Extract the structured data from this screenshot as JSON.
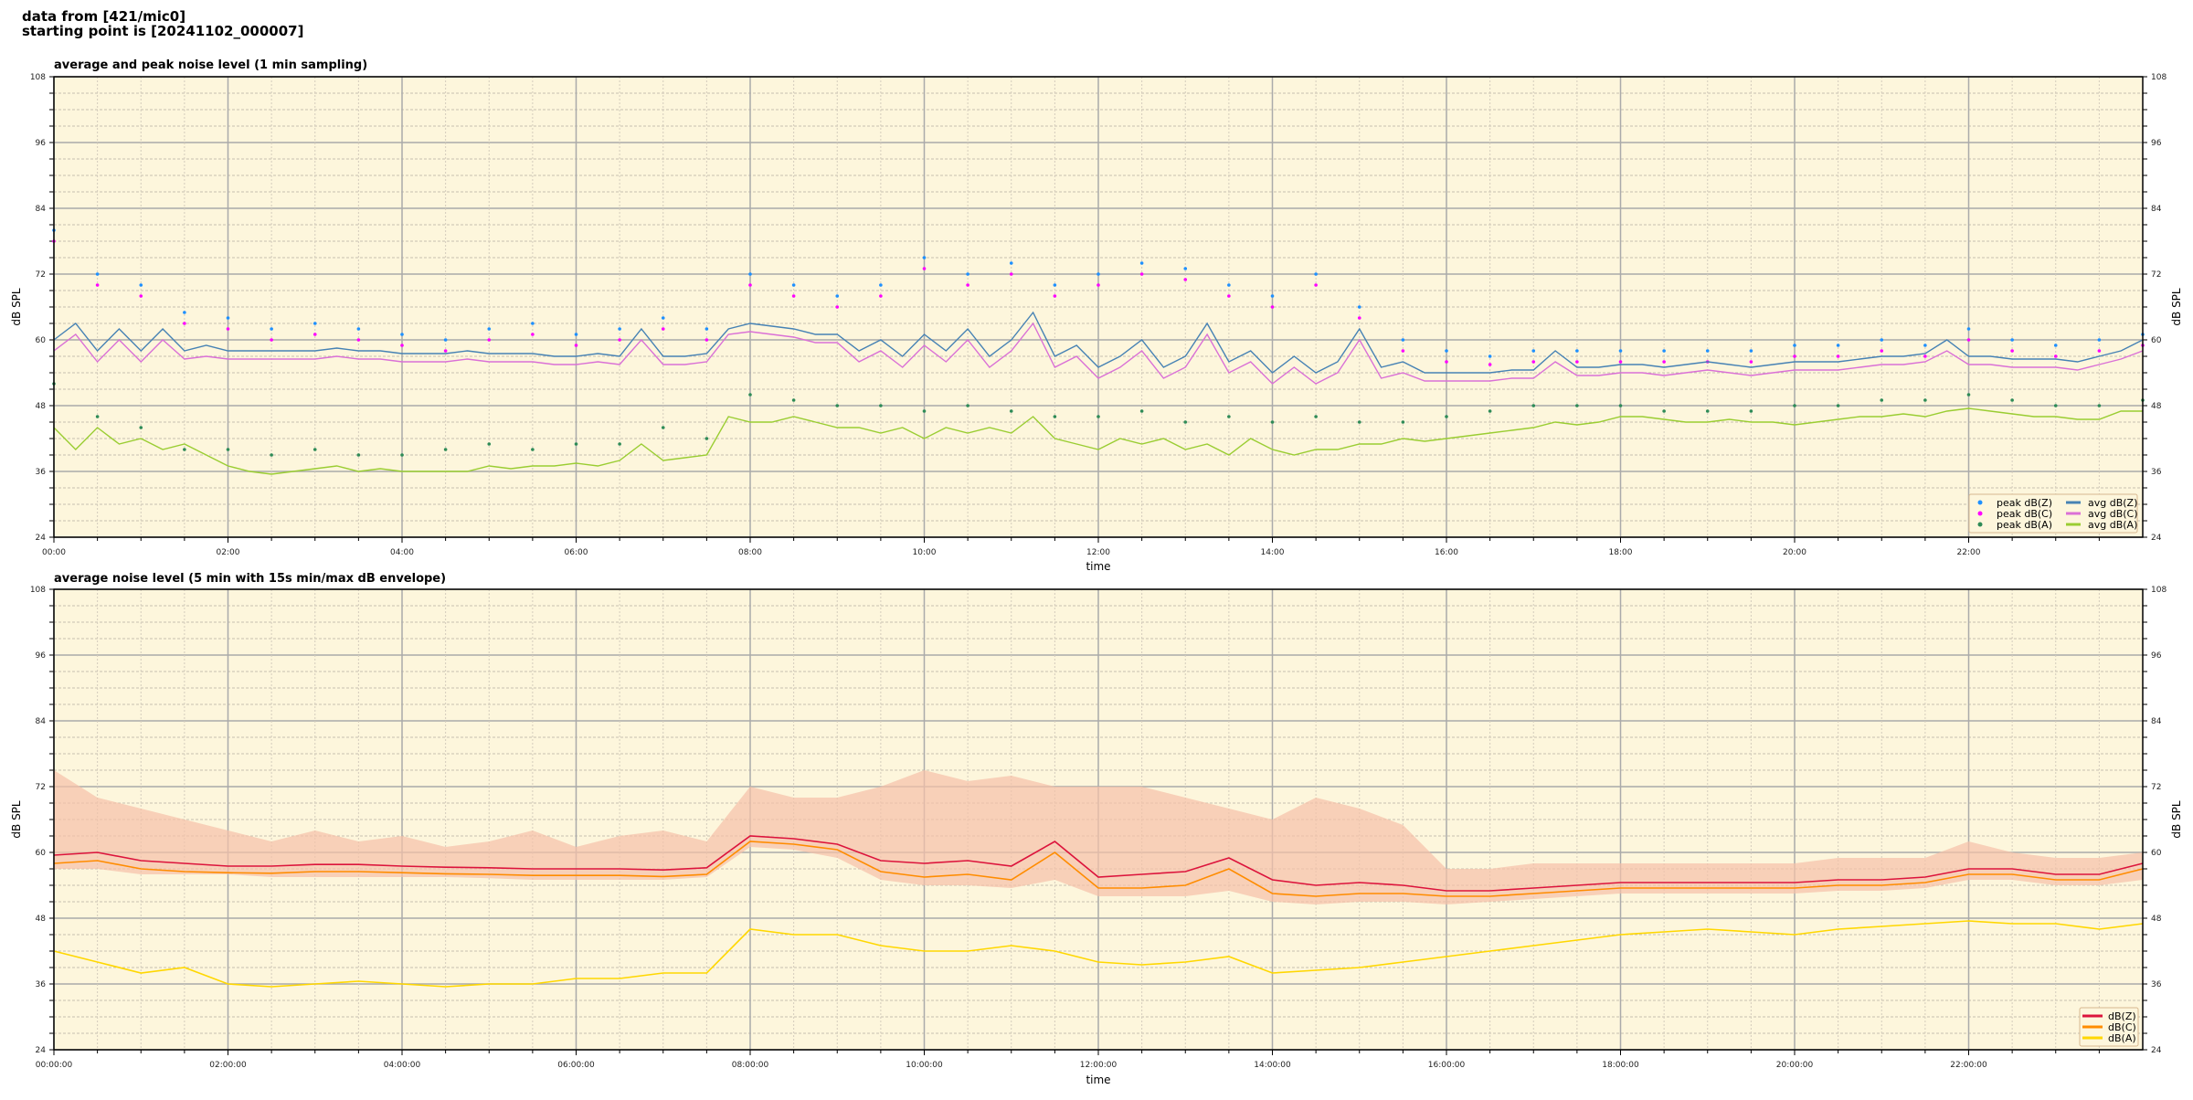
{
  "figure": {
    "suptitle_line1": "data from [421/mic0]",
    "suptitle_line2": "starting point is [20241102_000007]"
  },
  "colors": {
    "plot_background": "#fdf6dc",
    "peak_z": "#1e90ff",
    "peak_c": "#ff00ff",
    "peak_a": "#2e8b57",
    "avg_z": "#4682b4",
    "avg_c": "#da70d6",
    "avg_a": "#9acd32",
    "env_z": "#dc143c",
    "env_c": "#ff8c00",
    "env_a": "#ffd700",
    "envelope_fill": "#f5c0a8"
  },
  "chart_data": [
    {
      "type": "line",
      "title": "average and peak noise level (1 min sampling)",
      "xlabel": "time",
      "ylabel": "dB SPL",
      "ylim": [
        24,
        108
      ],
      "yticks": [
        "108",
        "96",
        "84",
        "72",
        "60",
        "48",
        "36",
        "24"
      ],
      "xlim_hours": [
        0,
        24
      ],
      "xticks": [
        "00:00",
        "02:00",
        "04:00",
        "06:00",
        "08:00",
        "10:00",
        "12:00",
        "14:00",
        "16:00",
        "18:00",
        "20:00",
        "22:00"
      ],
      "grid": true,
      "legend_position": "bottom-right",
      "x_step_minutes_avg": 15,
      "x_step_minutes_peak": 30,
      "series": [
        {
          "name": "peak dB(Z)",
          "kind": "scatter",
          "values": [
            80,
            72,
            70,
            65,
            64,
            62,
            63,
            62,
            61,
            60,
            62,
            63,
            61,
            62,
            64,
            62,
            72,
            70,
            68,
            70,
            75,
            72,
            74,
            70,
            72,
            74,
            73,
            70,
            68,
            72,
            66,
            60,
            58,
            57,
            58,
            58,
            58,
            58,
            58,
            58,
            59,
            59,
            60,
            59,
            62,
            60,
            59,
            60,
            61
          ]
        },
        {
          "name": "peak dB(C)",
          "kind": "scatter",
          "values": [
            78,
            70,
            68,
            63,
            62,
            60,
            61,
            60,
            59,
            58,
            60,
            61,
            59,
            60,
            62,
            60,
            70,
            68,
            66,
            68,
            73,
            70,
            72,
            68,
            70,
            72,
            71,
            68,
            66,
            70,
            64,
            58,
            56,
            55.5,
            56,
            56,
            56,
            56,
            56,
            56,
            57,
            57,
            58,
            57,
            60,
            58,
            57,
            58,
            59
          ]
        },
        {
          "name": "peak dB(A)",
          "kind": "scatter",
          "values": [
            52,
            46,
            44,
            40,
            40,
            39,
            40,
            39,
            39,
            40,
            41,
            40,
            41,
            41,
            44,
            42,
            50,
            49,
            48,
            48,
            47,
            48,
            47,
            46,
            46,
            47,
            45,
            46,
            45,
            46,
            45,
            45,
            46,
            47,
            48,
            48,
            48,
            47,
            47,
            47,
            48,
            48,
            49,
            49,
            50,
            49,
            48,
            48,
            49
          ]
        },
        {
          "name": "avg dB(Z)",
          "kind": "line",
          "values": [
            60,
            63,
            58,
            62,
            58,
            62,
            58,
            59,
            58,
            58,
            58,
            58,
            58,
            58.5,
            58,
            58,
            57.5,
            57.5,
            57.5,
            58,
            57.5,
            57.5,
            57.5,
            57,
            57,
            57.5,
            57,
            62,
            57,
            57,
            57.5,
            62,
            63,
            62.5,
            62,
            61,
            61,
            58,
            60,
            57,
            61,
            58,
            62,
            57,
            60,
            65,
            57,
            59,
            55,
            57,
            60,
            55,
            57,
            63,
            56,
            58,
            54,
            57,
            54,
            56,
            62,
            55,
            56,
            54,
            54,
            54,
            54,
            54.5,
            54.5,
            58,
            55,
            55,
            55.5,
            55.5,
            55,
            55.5,
            56,
            55.5,
            55,
            55.5,
            56,
            56,
            56,
            56.5,
            57,
            57,
            57.5,
            60,
            57,
            57,
            56.5,
            56.5,
            56.5,
            56,
            57,
            58,
            60
          ]
        },
        {
          "name": "avg dB(C)",
          "kind": "line",
          "values": [
            58,
            61,
            56,
            60,
            56,
            60,
            56.5,
            57,
            56.5,
            56.5,
            56.5,
            56.5,
            56.5,
            57,
            56.5,
            56.5,
            56,
            56,
            56,
            56.5,
            56,
            56,
            56,
            55.5,
            55.5,
            56,
            55.5,
            60,
            55.5,
            55.5,
            56,
            61,
            61.5,
            61,
            60.5,
            59.5,
            59.5,
            56,
            58,
            55,
            59,
            56,
            60,
            55,
            58,
            63,
            55,
            57,
            53,
            55,
            58,
            53,
            55,
            61,
            54,
            56,
            52,
            55,
            52,
            54,
            60,
            53,
            54,
            52.5,
            52.5,
            52.5,
            52.5,
            53,
            53,
            56,
            53.5,
            53.5,
            54,
            54,
            53.5,
            54,
            54.5,
            54,
            53.5,
            54,
            54.5,
            54.5,
            54.5,
            55,
            55.5,
            55.5,
            56,
            58,
            55.5,
            55.5,
            55,
            55,
            55,
            54.5,
            55.5,
            56.5,
            58
          ]
        },
        {
          "name": "avg dB(A)",
          "kind": "line",
          "values": [
            44,
            40,
            44,
            41,
            42,
            40,
            41,
            39,
            37,
            36,
            35.5,
            36,
            36.5,
            37,
            36,
            36.5,
            36,
            36,
            36,
            36,
            37,
            36.5,
            37,
            37,
            37.5,
            37,
            38,
            41,
            38,
            38.5,
            39,
            46,
            45,
            45,
            46,
            45,
            44,
            44,
            43,
            44,
            42,
            44,
            43,
            44,
            43,
            46,
            42,
            41,
            40,
            42,
            41,
            42,
            40,
            41,
            39,
            42,
            40,
            39,
            40,
            40,
            41,
            41,
            42,
            41.5,
            42,
            42.5,
            43,
            43.5,
            44,
            45,
            44.5,
            45,
            46,
            46,
            45.5,
            45,
            45,
            45.5,
            45,
            45,
            44.5,
            45,
            45.5,
            46,
            46,
            46.5,
            46,
            47,
            47.5,
            47,
            46.5,
            46,
            46,
            45.5,
            45.5,
            47,
            47
          ]
        }
      ]
    },
    {
      "type": "line",
      "title": "average noise level (5 min with 15s min/max dB envelope)",
      "xlabel": "time",
      "ylabel": "dB SPL",
      "ylim": [
        24,
        108
      ],
      "yticks": [
        "108",
        "96",
        "84",
        "72",
        "60",
        "48",
        "36",
        "24"
      ],
      "xlim_hours": [
        0,
        24
      ],
      "xticks": [
        "00:00:00",
        "02:00:00",
        "04:00:00",
        "06:00:00",
        "08:00:00",
        "10:00:00",
        "12:00:00",
        "14:00:00",
        "16:00:00",
        "18:00:00",
        "20:00:00",
        "22:00:00"
      ],
      "grid": true,
      "legend_position": "bottom-right",
      "x_step_minutes": 30,
      "envelope": {
        "max": [
          75,
          70,
          68,
          66,
          64,
          62,
          64,
          62,
          63,
          61,
          62,
          64,
          61,
          63,
          64,
          62,
          72,
          70,
          70,
          72,
          75,
          73,
          74,
          72,
          72,
          72,
          70,
          68,
          66,
          70,
          68,
          65,
          57,
          57,
          58,
          58,
          58,
          58,
          58,
          58,
          58,
          59,
          59,
          59,
          62,
          60,
          59,
          59,
          60
        ],
        "min": [
          57,
          57,
          56,
          56,
          56,
          55.5,
          55.5,
          55.5,
          55.5,
          55.5,
          55.3,
          55,
          55,
          55,
          55,
          55.5,
          61,
          60.5,
          59,
          55,
          54,
          54,
          53.5,
          55,
          52,
          52,
          52,
          53,
          51,
          50.5,
          51,
          51,
          50.5,
          51,
          51.5,
          52,
          52.5,
          52.5,
          52.5,
          52.5,
          52.5,
          53,
          53,
          53.5,
          55,
          55,
          54,
          54,
          55
        ]
      },
      "series": [
        {
          "name": "dB(Z)",
          "values": [
            59.5,
            60,
            58.5,
            58,
            57.5,
            57.5,
            57.8,
            57.8,
            57.5,
            57.3,
            57.2,
            57,
            57,
            57,
            56.8,
            57.2,
            63,
            62.5,
            61.5,
            58.5,
            58,
            58.5,
            57.5,
            62,
            55.5,
            56,
            56.5,
            59,
            55,
            54,
            54.5,
            54,
            53,
            53,
            53.5,
            54,
            54.5,
            54.5,
            54.5,
            54.5,
            54.5,
            55,
            55,
            55.5,
            57,
            57,
            56,
            56,
            58
          ]
        },
        {
          "name": "dB(C)",
          "values": [
            58,
            58.5,
            57,
            56.5,
            56.3,
            56.2,
            56.5,
            56.5,
            56.3,
            56.1,
            56,
            55.8,
            55.8,
            55.8,
            55.6,
            56,
            62,
            61.5,
            60.5,
            56.5,
            55.5,
            56,
            55,
            60,
            53.5,
            53.5,
            54,
            57,
            52.5,
            52,
            52.5,
            52.5,
            52,
            52,
            52.5,
            53,
            53.5,
            53.5,
            53.5,
            53.5,
            53.5,
            54,
            54,
            54.5,
            56,
            56,
            55,
            55,
            57
          ]
        },
        {
          "name": "dB(A)",
          "values": [
            42,
            40,
            38,
            39,
            36,
            35.5,
            36,
            36.5,
            36,
            35.5,
            36,
            36,
            37,
            37,
            38,
            38,
            46,
            45,
            45,
            43,
            42,
            42,
            43,
            42,
            40,
            39.5,
            40,
            41,
            38,
            38.5,
            39,
            40,
            41,
            42,
            43,
            44,
            45,
            45.5,
            46,
            45.5,
            45,
            46,
            46.5,
            47,
            47.5,
            47,
            47,
            46,
            47
          ]
        }
      ]
    }
  ]
}
